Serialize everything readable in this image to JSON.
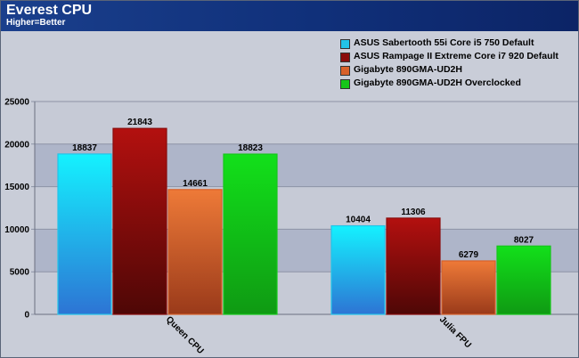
{
  "header": {
    "title": "Everest CPU",
    "subtitle": "Higher=Better"
  },
  "chart_data": {
    "type": "bar",
    "title": "Everest CPU",
    "subtitle": "Higher=Better",
    "categories": [
      "Queen CPU",
      "Julia FPU"
    ],
    "series": [
      {
        "name": "ASUS Sabertooth 55i Core i5 750 Default",
        "values": [
          18837,
          10404
        ],
        "color": "#22c4e8"
      },
      {
        "name": "ASUS Rampage II Extreme Core i7 920 Default",
        "values": [
          21843,
          11306
        ],
        "color": "#8a0c0c"
      },
      {
        "name": "Gigabyte 890GMA-UD2H",
        "values": [
          14661,
          6279
        ],
        "color": "#d8602a"
      },
      {
        "name": "Gigabyte 890GMA-UD2H Overclocked",
        "values": [
          18823,
          8027
        ],
        "color": "#16c61a"
      }
    ],
    "ylim": [
      0,
      25000
    ],
    "yticks": [
      0,
      5000,
      10000,
      15000,
      20000,
      25000
    ],
    "ytick_labels": [
      "0",
      "5000",
      "10000",
      "15000",
      "20000",
      "25000"
    ],
    "grid": "horizontal bands",
    "legend": "top-right"
  }
}
